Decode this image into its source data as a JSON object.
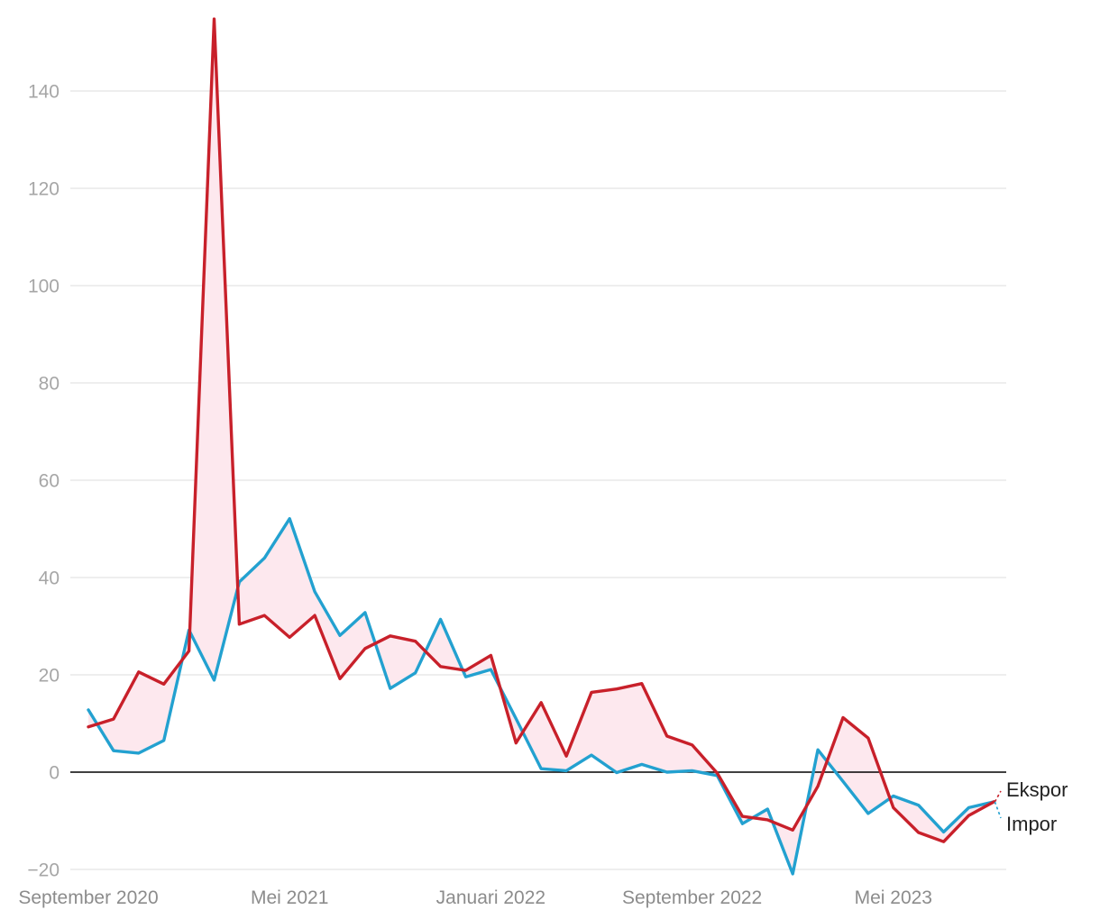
{
  "chart_data": {
    "type": "line",
    "title": "",
    "xlabel": "",
    "ylabel": "",
    "ylim": [
      -20,
      150
    ],
    "yticks": [
      -20,
      0,
      20,
      40,
      60,
      80,
      100,
      120,
      140
    ],
    "ytick_labels": [
      "−20",
      "0",
      "20",
      "40",
      "60",
      "80",
      "100",
      "120",
      "140"
    ],
    "grid": true,
    "x": [
      "2020-09",
      "2020-10",
      "2020-11",
      "2020-12",
      "2021-01",
      "2021-02",
      "2021-03",
      "2021-04",
      "2021-05",
      "2021-06",
      "2021-07",
      "2021-08",
      "2021-09",
      "2021-10",
      "2021-11",
      "2021-12",
      "2022-01",
      "2022-02",
      "2022-03",
      "2022-04",
      "2022-05",
      "2022-06",
      "2022-07",
      "2022-08",
      "2022-09",
      "2022-10",
      "2022-11",
      "2022-12",
      "2023-01",
      "2023-02",
      "2023-03",
      "2023-04",
      "2023-05",
      "2023-06",
      "2023-07",
      "2023-08",
      "2023-09",
      "2023-10",
      "2023-11"
    ],
    "xtick_labels": [
      {
        "label": "September 2020",
        "at": "2020-09"
      },
      {
        "label": "Mei 2021",
        "at": "2021-05"
      },
      {
        "label": "Januari 2022",
        "at": "2022-01"
      },
      {
        "label": "September 2022",
        "at": "2022-09"
      },
      {
        "label": "Mei 2023",
        "at": "2023-05"
      }
    ],
    "series": [
      {
        "name": "Ekspor",
        "color": "#c8202a",
        "values": [
          9.3,
          10.9,
          20.6,
          18.1,
          24.9,
          154.8,
          30.4,
          32.2,
          27.7,
          32.2,
          19.2,
          25.4,
          28.0,
          26.9,
          21.7,
          20.9,
          24.0,
          6.0,
          14.3,
          3.3,
          16.4,
          17.1,
          18.2,
          7.4,
          5.6,
          -0.2,
          -9.1,
          -9.8,
          -11.9,
          -2.9,
          11.2,
          7.0,
          -7.3,
          -12.4,
          -14.3,
          -8.9,
          -6.1,
          null,
          null
        ]
      },
      {
        "name": "Impor",
        "color": "#23a1d0",
        "values": [
          12.8,
          4.4,
          3.9,
          6.5,
          29.2,
          18.9,
          39.1,
          44.0,
          52.1,
          37.1,
          28.1,
          32.8,
          17.2,
          20.4,
          31.4,
          19.6,
          21.1,
          11.0,
          0.7,
          0.3,
          3.5,
          -0.1,
          1.6,
          0.0,
          0.3,
          -0.7,
          -10.6,
          -7.6,
          -20.9,
          4.6,
          -1.9,
          -8.5,
          -4.9,
          -6.8,
          -12.3,
          -7.3,
          -6.1,
          null,
          null
        ]
      }
    ],
    "fill_between": {
      "color": "#fde8ee"
    },
    "legend": {
      "placement": "right-end",
      "entries": [
        "Ekspor",
        "Impor"
      ]
    },
    "zero_line": true
  }
}
